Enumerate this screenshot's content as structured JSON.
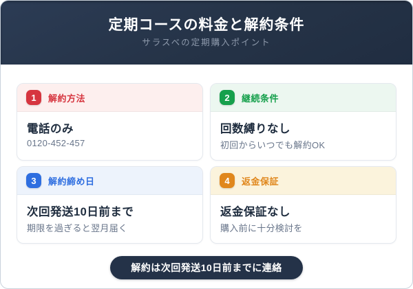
{
  "header": {
    "title": "定期コースの料金と解約条件",
    "subtitle": "サラスベの定期購入ポイント"
  },
  "cards": [
    {
      "number": "1",
      "label": "解約方法",
      "title": "電話のみ",
      "note": "0120-452-457",
      "accent_color": "#d6353f",
      "tint_color": "#fdefee"
    },
    {
      "number": "2",
      "label": "継続条件",
      "title": "回数縛りなし",
      "note": "初回からいつでも解約OK",
      "accent_color": "#16a04c",
      "tint_color": "#ecf7f0"
    },
    {
      "number": "3",
      "label": "解約締め日",
      "title": "次回発送10日前まで",
      "note": "期限を過ぎると翌月届く",
      "accent_color": "#2e6ee0",
      "tint_color": "#edf3fc"
    },
    {
      "number": "4",
      "label": "返金保証",
      "title": "返金保証なし",
      "note": "購入前に十分検討を",
      "accent_color": "#e0871c",
      "tint_color": "#fbf3dc"
    }
  ],
  "footer": {
    "cta_label": "解約は次回発送10日前までに連絡"
  },
  "colors": {
    "header_bg": "#253347",
    "cta_bg": "#243248",
    "title_text": "#ffffff",
    "subtitle_text": "#8d99ab",
    "card_title_text": "#1e2c3e",
    "card_note_text": "#68758a"
  }
}
